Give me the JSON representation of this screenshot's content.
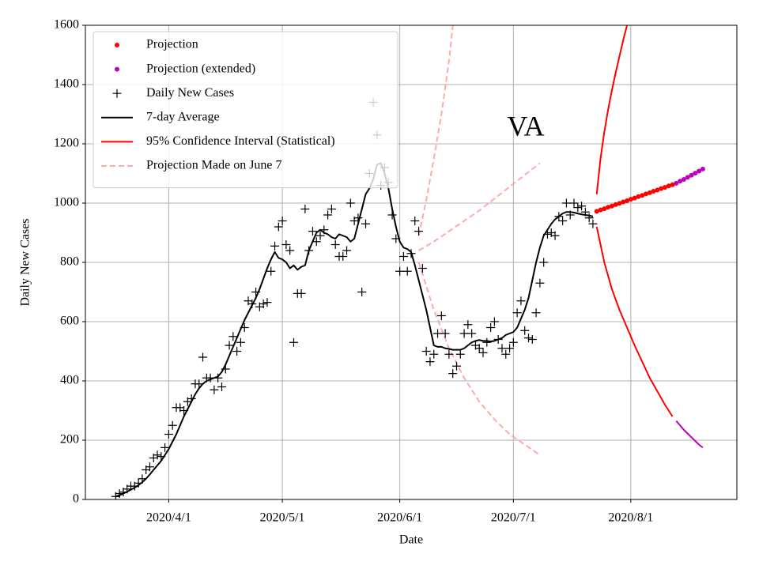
{
  "chart_data": {
    "type": "line",
    "title": "VA",
    "x_label": "Date",
    "y_label": "Daily New Cases",
    "xlim": [
      "2020-03-10",
      "2020-08-29"
    ],
    "xticks": [
      {
        "value": "2020-04-01",
        "label": "2020/4/1"
      },
      {
        "value": "2020-05-01",
        "label": "2020/5/1"
      },
      {
        "value": "2020-06-01",
        "label": "2020/6/1"
      },
      {
        "value": "2020-07-01",
        "label": "2020/7/1"
      },
      {
        "value": "2020-08-01",
        "label": "2020/8/1"
      }
    ],
    "ylim": [
      0,
      1600
    ],
    "yticks": [
      0,
      200,
      400,
      600,
      800,
      1000,
      1200,
      1400,
      1600
    ],
    "grid": true,
    "legend": "upper left",
    "x": [
      "2020-03-18",
      "2020-03-19",
      "2020-03-20",
      "2020-03-21",
      "2020-03-22",
      "2020-03-23",
      "2020-03-24",
      "2020-03-25",
      "2020-03-26",
      "2020-03-27",
      "2020-03-28",
      "2020-03-29",
      "2020-03-30",
      "2020-03-31",
      "2020-04-01",
      "2020-04-02",
      "2020-04-03",
      "2020-04-04",
      "2020-04-05",
      "2020-04-06",
      "2020-04-07",
      "2020-04-08",
      "2020-04-09",
      "2020-04-10",
      "2020-04-11",
      "2020-04-12",
      "2020-04-13",
      "2020-04-14",
      "2020-04-15",
      "2020-04-16",
      "2020-04-17",
      "2020-04-18",
      "2020-04-19",
      "2020-04-20",
      "2020-04-21",
      "2020-04-22",
      "2020-04-23",
      "2020-04-24",
      "2020-04-25",
      "2020-04-26",
      "2020-04-27",
      "2020-04-28",
      "2020-04-29",
      "2020-04-30",
      "2020-05-01",
      "2020-05-02",
      "2020-05-03",
      "2020-05-04",
      "2020-05-05",
      "2020-05-06",
      "2020-05-07",
      "2020-05-08",
      "2020-05-09",
      "2020-05-10",
      "2020-05-11",
      "2020-05-12",
      "2020-05-13",
      "2020-05-14",
      "2020-05-15",
      "2020-05-16",
      "2020-05-17",
      "2020-05-18",
      "2020-05-19",
      "2020-05-20",
      "2020-05-21",
      "2020-05-22",
      "2020-05-23",
      "2020-05-24",
      "2020-05-25",
      "2020-05-26",
      "2020-05-27",
      "2020-05-28",
      "2020-05-29",
      "2020-05-30",
      "2020-05-31",
      "2020-06-01",
      "2020-06-02",
      "2020-06-03",
      "2020-06-04",
      "2020-06-05",
      "2020-06-06",
      "2020-06-07",
      "2020-06-08",
      "2020-06-09",
      "2020-06-10",
      "2020-06-11",
      "2020-06-12",
      "2020-06-13",
      "2020-06-14",
      "2020-06-15",
      "2020-06-16",
      "2020-06-17",
      "2020-06-18",
      "2020-06-19",
      "2020-06-20",
      "2020-06-21",
      "2020-06-22",
      "2020-06-23",
      "2020-06-24",
      "2020-06-25",
      "2020-06-26",
      "2020-06-27",
      "2020-06-28",
      "2020-06-29",
      "2020-06-30",
      "2020-07-01",
      "2020-07-02",
      "2020-07-03",
      "2020-07-04",
      "2020-07-05",
      "2020-07-06",
      "2020-07-07",
      "2020-07-08",
      "2020-07-09",
      "2020-07-10",
      "2020-07-11",
      "2020-07-12",
      "2020-07-13",
      "2020-07-14",
      "2020-07-15",
      "2020-07-16",
      "2020-07-17",
      "2020-07-18",
      "2020-07-19",
      "2020-07-20",
      "2020-07-21",
      "2020-07-22"
    ],
    "series": [
      {
        "name": "Projection",
        "color": "#ff0000",
        "style": "dot",
        "x": [
          "2020-07-23",
          "2020-07-24",
          "2020-07-25",
          "2020-07-26",
          "2020-07-27",
          "2020-07-28",
          "2020-07-29",
          "2020-07-30",
          "2020-07-31",
          "2020-08-01",
          "2020-08-02",
          "2020-08-03",
          "2020-08-04",
          "2020-08-05",
          "2020-08-06",
          "2020-08-07",
          "2020-08-08",
          "2020-08-09",
          "2020-08-10",
          "2020-08-11",
          "2020-08-12"
        ],
        "values": [
          972,
          977,
          981,
          986,
          990,
          995,
          999,
          1004,
          1008,
          1013,
          1017,
          1022,
          1026,
          1031,
          1035,
          1040,
          1044,
          1049,
          1053,
          1058,
          1062
        ]
      },
      {
        "name": "Projection (extended)",
        "color": "#bf00bf",
        "style": "dot",
        "x": [
          "2020-08-13",
          "2020-08-14",
          "2020-08-15",
          "2020-08-16",
          "2020-08-17",
          "2020-08-18",
          "2020-08-19",
          "2020-08-20"
        ],
        "values": [
          1067,
          1074,
          1080,
          1087,
          1094,
          1101,
          1108,
          1115
        ]
      },
      {
        "name": "Daily New Cases",
        "color": "#000000",
        "style": "plus",
        "values": [
          10,
          20,
          25,
          35,
          45,
          45,
          55,
          70,
          100,
          110,
          140,
          150,
          145,
          175,
          220,
          250,
          310,
          310,
          300,
          330,
          340,
          390,
          390,
          480,
          410,
          410,
          370,
          410,
          380,
          440,
          520,
          550,
          500,
          530,
          580,
          670,
          660,
          700,
          650,
          660,
          665,
          770,
          855,
          920,
          940,
          860,
          840,
          530,
          695,
          695,
          980,
          840,
          905,
          870,
          890,
          910,
          960,
          980,
          860,
          820,
          820,
          840,
          1000,
          940,
          950,
          700,
          930,
          1100,
          1340,
          1230,
          1060,
          1120,
          1070,
          960,
          880,
          770,
          820,
          770,
          830,
          940,
          905,
          780,
          500,
          465,
          490,
          560,
          620,
          560,
          490,
          425,
          450,
          490,
          560,
          590,
          560,
          520,
          510,
          495,
          530,
          580,
          600,
          540,
          510,
          490,
          510,
          530,
          630,
          670,
          570,
          545,
          540,
          630,
          730,
          800,
          895,
          900,
          890,
          955,
          940,
          1000,
          960,
          1000,
          985,
          990,
          970,
          950,
          930
        ]
      },
      {
        "name": "7-day Average",
        "color": "#000000",
        "style": "line",
        "values": [
          10,
          14,
          20,
          26,
          33,
          40,
          48,
          58,
          70,
          84,
          100,
          115,
          130,
          150,
          170,
          195,
          220,
          250,
          280,
          305,
          330,
          355,
          375,
          390,
          400,
          405,
          410,
          415,
          430,
          455,
          485,
          515,
          545,
          575,
          605,
          630,
          655,
          680,
          710,
          745,
          780,
          810,
          835,
          815,
          810,
          800,
          780,
          790,
          775,
          785,
          790,
          840,
          870,
          900,
          910,
          900,
          895,
          885,
          880,
          895,
          890,
          885,
          870,
          880,
          930,
          980,
          1030,
          1050,
          1080,
          1130,
          1135,
          1100,
          1050,
          980,
          920,
          870,
          850,
          845,
          835,
          790,
          740,
          690,
          640,
          580,
          520,
          515,
          515,
          510,
          508,
          505,
          505,
          505,
          510,
          520,
          530,
          535,
          538,
          535,
          535,
          533,
          535,
          540,
          545,
          555,
          560,
          565,
          580,
          610,
          640,
          680,
          740,
          800,
          850,
          890,
          910,
          930,
          945,
          955,
          965,
          970,
          970,
          968,
          965,
          962,
          960,
          958,
          955
        ]
      },
      {
        "name": "95% Confidence Interval (Statistical)",
        "color": "#ff0000",
        "style": "line",
        "pieces": [
          {
            "x": [
              "2020-07-23",
              "2020-07-24",
              "2020-07-25",
              "2020-07-26",
              "2020-07-27",
              "2020-07-28",
              "2020-07-29",
              "2020-07-30",
              "2020-07-31"
            ],
            "values": [
              1030,
              1150,
              1240,
              1315,
              1380,
              1440,
              1495,
              1550,
              1600
            ]
          },
          {
            "x": [
              "2020-07-23",
              "2020-07-25",
              "2020-07-27",
              "2020-07-29",
              "2020-07-31",
              "2020-08-02",
              "2020-08-04",
              "2020-08-06",
              "2020-08-08",
              "2020-08-10",
              "2020-08-12"
            ],
            "values": [
              920,
              800,
              710,
              640,
              580,
              520,
              465,
              410,
              365,
              320,
              280
            ]
          }
        ]
      },
      {
        "color": "#bf00bf",
        "style": "line",
        "pieces": [
          {
            "x": [
              "2020-08-13",
              "2020-08-15",
              "2020-08-17",
              "2020-08-19",
              "2020-08-20"
            ],
            "values": [
              265,
              235,
              210,
              185,
              175
            ]
          }
        ]
      },
      {
        "name": "Projection Made on June 7",
        "color": "#ffaaaa",
        "style": "dashed",
        "pieces": [
          {
            "x": [
              "2020-06-06",
              "2020-06-10",
              "2020-06-14",
              "2020-06-18",
              "2020-06-22",
              "2020-06-26",
              "2020-06-30",
              "2020-07-04",
              "2020-07-08"
            ],
            "values": [
              840,
              870,
              905,
              940,
              975,
              1015,
              1055,
              1095,
              1135
            ]
          },
          {
            "x": [
              "2020-06-06",
              "2020-06-08",
              "2020-06-10",
              "2020-06-12",
              "2020-06-14",
              "2020-06-15"
            ],
            "values": [
              890,
              1010,
              1150,
              1300,
              1480,
              1600
            ]
          },
          {
            "x": [
              "2020-06-06",
              "2020-06-10",
              "2020-06-14",
              "2020-06-18",
              "2020-06-22",
              "2020-06-26",
              "2020-06-30",
              "2020-07-04",
              "2020-07-08"
            ],
            "values": [
              800,
              640,
              510,
              410,
              330,
              270,
              220,
              185,
              150
            ]
          }
        ]
      }
    ]
  }
}
